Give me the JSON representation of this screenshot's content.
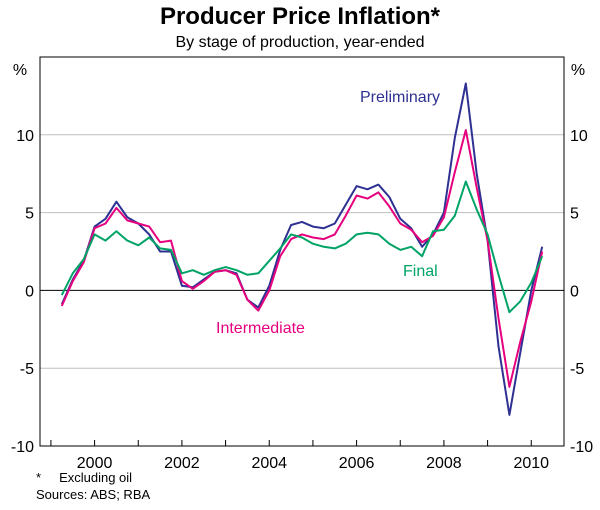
{
  "chart_data": {
    "type": "line",
    "title": "Producer Price Inflation*",
    "subtitle": "By stage of production, year-ended",
    "ylabel_left": "%",
    "ylabel_right": "%",
    "ylim": [
      -10,
      15
    ],
    "yticks": [
      -10,
      -5,
      0,
      5,
      10
    ],
    "xlim": [
      1998.75,
      2010.75
    ],
    "xticks": [
      2000,
      2002,
      2004,
      2006,
      2008,
      2010
    ],
    "x": [
      1999.25,
      1999.5,
      1999.75,
      2000.0,
      2000.25,
      2000.5,
      2000.75,
      2001.0,
      2001.25,
      2001.5,
      2001.75,
      2002.0,
      2002.25,
      2002.5,
      2002.75,
      2003.0,
      2003.25,
      2003.5,
      2003.75,
      2004.0,
      2004.25,
      2004.5,
      2004.75,
      2005.0,
      2005.25,
      2005.5,
      2005.75,
      2006.0,
      2006.25,
      2006.5,
      2006.75,
      2007.0,
      2007.25,
      2007.5,
      2007.75,
      2008.0,
      2008.25,
      2008.5,
      2008.75,
      2009.0,
      2009.25,
      2009.5,
      2009.75,
      2010.0,
      2010.25
    ],
    "series": [
      {
        "name": "Preliminary",
        "color": "#2e3192",
        "values": [
          -0.9,
          0.7,
          1.9,
          4.1,
          4.6,
          5.7,
          4.7,
          4.3,
          3.6,
          2.5,
          2.5,
          0.3,
          0.2,
          0.7,
          1.2,
          1.3,
          1.1,
          -0.6,
          -1.1,
          0.3,
          2.6,
          4.2,
          4.4,
          4.1,
          4.0,
          4.3,
          5.5,
          6.7,
          6.5,
          6.8,
          6.0,
          4.6,
          4.0,
          2.8,
          3.6,
          5.0,
          9.8,
          13.3,
          7.5,
          3.2,
          -3.6,
          -8.0,
          -4.0,
          0.0,
          2.8
        ]
      },
      {
        "name": "Intermediate",
        "color": "#e6007e",
        "values": [
          -1.0,
          0.6,
          1.8,
          4.0,
          4.3,
          5.3,
          4.5,
          4.3,
          4.1,
          3.1,
          3.2,
          0.6,
          0.1,
          0.6,
          1.2,
          1.3,
          1.0,
          -0.6,
          -1.3,
          0.0,
          2.2,
          3.3,
          3.6,
          3.4,
          3.3,
          3.6,
          4.8,
          6.1,
          5.9,
          6.3,
          5.4,
          4.3,
          3.9,
          3.1,
          3.5,
          4.7,
          7.6,
          10.3,
          6.6,
          3.2,
          -1.8,
          -6.2,
          -3.3,
          -0.7,
          2.5
        ]
      },
      {
        "name": "Final",
        "color": "#00a366",
        "values": [
          -0.3,
          1.1,
          2.0,
          3.6,
          3.2,
          3.8,
          3.2,
          2.9,
          3.4,
          2.7,
          2.6,
          1.1,
          1.3,
          1.0,
          1.3,
          1.5,
          1.3,
          1.0,
          1.1,
          1.9,
          2.7,
          3.6,
          3.4,
          3.0,
          2.8,
          2.7,
          3.0,
          3.6,
          3.7,
          3.6,
          3.0,
          2.6,
          2.8,
          2.2,
          3.8,
          3.9,
          4.8,
          7.0,
          5.2,
          3.6,
          1.0,
          -1.4,
          -0.7,
          0.5,
          2.2
        ]
      }
    ],
    "series_labels": {
      "preliminary": "Preliminary",
      "intermediate": "Intermediate",
      "final": "Final"
    }
  },
  "footnotes": {
    "note_marker": "*",
    "note": "Excluding oil",
    "sources": "Sources: ABS; RBA"
  }
}
